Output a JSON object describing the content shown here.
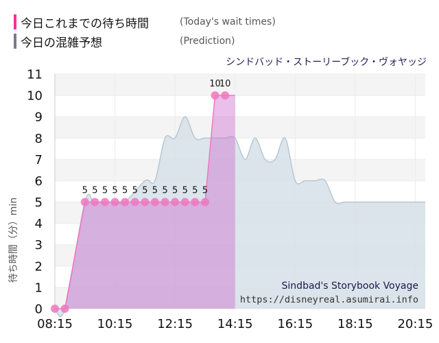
{
  "legend": {
    "today_jp": "今日これまでの待ち時間",
    "today_en": "(Today's wait times)",
    "pred_jp": "今日の混雑予想",
    "pred_en": "(Prediction)"
  },
  "colors": {
    "today": "#ff2d96",
    "prediction": "#7a7a90",
    "today_fill": "#cc66cc",
    "today_point": "#ee77c0",
    "prediction_fill": "#d6e0e8",
    "prediction_line": "#b8c6d2",
    "grid": "#ebebeb",
    "band": "#f4f4f4"
  },
  "watermark": {
    "title": "Sindbad's Storybook Voyage",
    "url": "https://disneyreal.asumirai.info"
  },
  "chart_data": {
    "type": "area",
    "title": "シンドバッド・ストーリーブック・ヴォヤッジ",
    "ylabel": "待ち時間（分）min",
    "xlabel": "",
    "ylim": [
      0,
      11
    ],
    "xlim": [
      "08:15",
      "20:35"
    ],
    "yticks": [
      "0",
      "1",
      "2",
      "3",
      "4",
      "5",
      "6",
      "7",
      "8",
      "9",
      "10",
      "11"
    ],
    "xticks": [
      "08:15",
      "10:15",
      "12:15",
      "14:15",
      "16:15",
      "18:15",
      "20:15"
    ],
    "grid": true,
    "series": [
      {
        "name": "今日これまでの待ち時間",
        "kind": "step-area",
        "x": [
          "08:15",
          "08:35",
          "09:15",
          "09:35",
          "09:55",
          "10:15",
          "10:35",
          "10:55",
          "11:15",
          "11:35",
          "11:55",
          "12:15",
          "12:35",
          "12:55",
          "13:15",
          "13:35",
          "13:55",
          "14:15"
        ],
        "y": [
          0,
          0,
          5,
          5,
          5,
          5,
          5,
          5,
          5,
          5,
          5,
          5,
          5,
          5,
          5,
          10,
          10,
          10
        ],
        "point_x": [
          "08:15",
          "08:35",
          "09:15",
          "09:35",
          "09:55",
          "10:15",
          "10:35",
          "10:55",
          "11:15",
          "11:35",
          "11:55",
          "12:15",
          "12:35",
          "12:55",
          "13:15",
          "13:35",
          "13:55"
        ],
        "point_y": [
          0,
          0,
          5,
          5,
          5,
          5,
          5,
          5,
          5,
          5,
          5,
          5,
          5,
          5,
          5,
          10,
          10
        ],
        "labels": [
          "",
          "",
          "5",
          "5",
          "5",
          "5",
          "5",
          "5",
          "5",
          "5",
          "5",
          "5",
          "5",
          "5",
          "5",
          "10",
          "10"
        ]
      },
      {
        "name": "今日の混雑予想",
        "kind": "area",
        "x": [
          "08:15",
          "08:35",
          "09:15",
          "09:35",
          "10:15",
          "10:35",
          "11:15",
          "11:35",
          "11:55",
          "12:15",
          "12:35",
          "12:55",
          "13:15",
          "13:35",
          "13:55",
          "14:15",
          "14:35",
          "14:55",
          "15:15",
          "15:35",
          "15:55",
          "16:15",
          "16:35",
          "16:55",
          "17:15",
          "17:35",
          "17:55",
          "18:15",
          "18:35",
          "18:55",
          "19:15",
          "19:35",
          "19:55",
          "20:15",
          "20:35"
        ],
        "y": [
          0,
          0,
          5,
          5,
          5,
          5,
          6,
          6,
          8,
          8,
          9,
          8,
          8,
          8,
          8,
          8,
          7,
          8,
          7,
          7,
          8,
          6,
          6,
          6,
          6,
          5,
          5,
          5,
          5,
          5,
          5,
          5,
          5,
          5,
          5
        ]
      }
    ]
  }
}
